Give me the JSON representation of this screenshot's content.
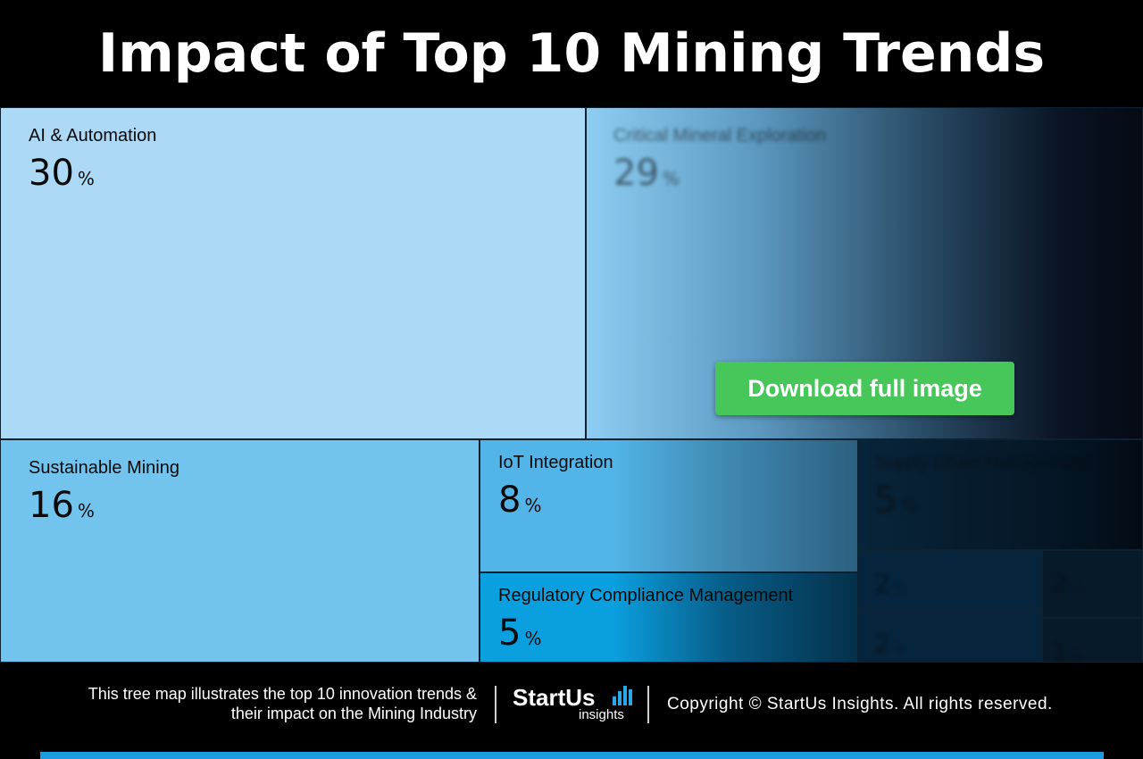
{
  "header": {
    "title": "Impact of Top 10 Mining Trends"
  },
  "chart_data": {
    "type": "treemap",
    "title": "Impact of Top 10 Mining Trends",
    "unit": "%",
    "items": [
      {
        "name": "AI & Automation",
        "value": 30,
        "value_label": "30",
        "color": "#acd9f6",
        "visible": true
      },
      {
        "name": "Critical Mineral Exploration",
        "value": 29,
        "value_label": "29",
        "color": "#8ecdf2",
        "visible": false
      },
      {
        "name": "Sustainable Mining",
        "value": 16,
        "value_label": "16",
        "color": "#72c4ee",
        "visible": true
      },
      {
        "name": "IoT Integration",
        "value": 8,
        "value_label": "8",
        "color": "#52b4e7",
        "visible": true
      },
      {
        "name": "Regulatory Compliance Management",
        "value": 5,
        "value_label": "5",
        "color": "#0aa0e0",
        "visible": true
      },
      {
        "name": "Supply Chain Management",
        "value": 5,
        "value_label": "5",
        "color": "#08243a",
        "visible": false
      },
      {
        "name": "",
        "value": 2,
        "value_label": "2",
        "color": "#06243c",
        "visible": false
      },
      {
        "name": "",
        "value": 2,
        "value_label": "2",
        "color": "#061a2a",
        "visible": false
      },
      {
        "name": "",
        "value": 2,
        "value_label": "2",
        "color": "#06243c",
        "visible": false
      },
      {
        "name": "",
        "value": 1,
        "value_label": "1",
        "color": "#061a2a",
        "visible": false
      }
    ]
  },
  "cta": {
    "label": "Download full image"
  },
  "footer": {
    "description_line1": "This tree map illustrates the top 10 innovation trends &",
    "description_line2": "their impact on the Mining Industry",
    "logo_main": "StartUs",
    "logo_sub": "insights",
    "copyright": "Copyright © StartUs Insights. All rights reserved.",
    "accent_color": "#1b9be0"
  }
}
